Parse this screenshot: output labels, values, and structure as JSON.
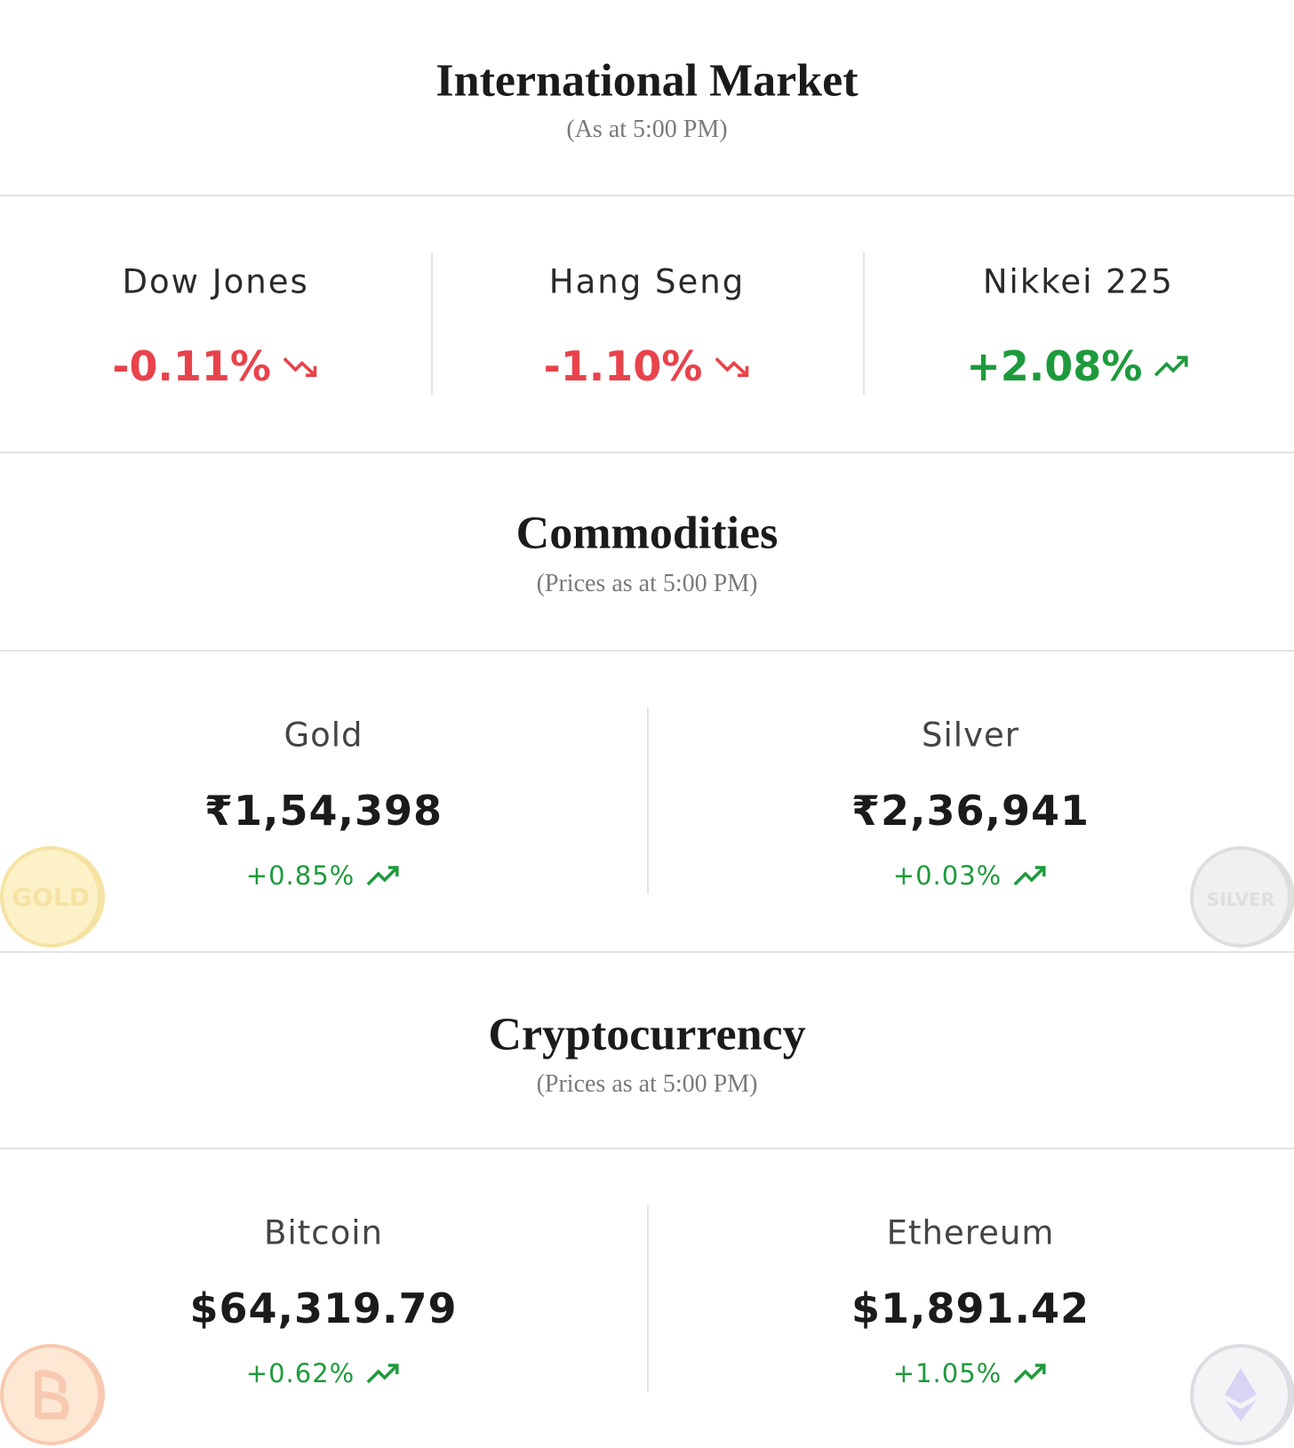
{
  "sections": [
    {
      "title": "International Market",
      "subtitle": "(As at 5:00 PM)",
      "items": [
        {
          "name": "Dow Jones",
          "change": "-0.11%",
          "trend": "down",
          "color": "#e8434b"
        },
        {
          "name": "Hang Seng",
          "change": "-1.10%",
          "trend": "down",
          "color": "#e8434b"
        },
        {
          "name": "Nikkei 225",
          "change": "+2.08%",
          "trend": "up",
          "color": "#1e9a3c"
        }
      ]
    },
    {
      "title": "Commodities",
      "subtitle": "(Prices as at 5:00 PM)",
      "items": [
        {
          "name": "Gold",
          "price": "₹1,54,398",
          "change": "+0.85%",
          "trend": "up",
          "color": "#1e9a3c",
          "badge": "GOLD"
        },
        {
          "name": "Silver",
          "price": "₹2,36,941",
          "change": "+0.03%",
          "trend": "up",
          "color": "#1e9a3c",
          "badge": "SILVER"
        }
      ]
    },
    {
      "title": "Cryptocurrency",
      "subtitle": "(Prices as at 5:00 PM)",
      "items": [
        {
          "name": "Bitcoin",
          "price": "$64,319.79",
          "change": "+0.62%",
          "trend": "up",
          "color": "#1e9a3c"
        },
        {
          "name": "Ethereum",
          "price": "$1,891.42",
          "change": "+1.05%",
          "trend": "up",
          "color": "#1e9a3c"
        }
      ]
    }
  ]
}
